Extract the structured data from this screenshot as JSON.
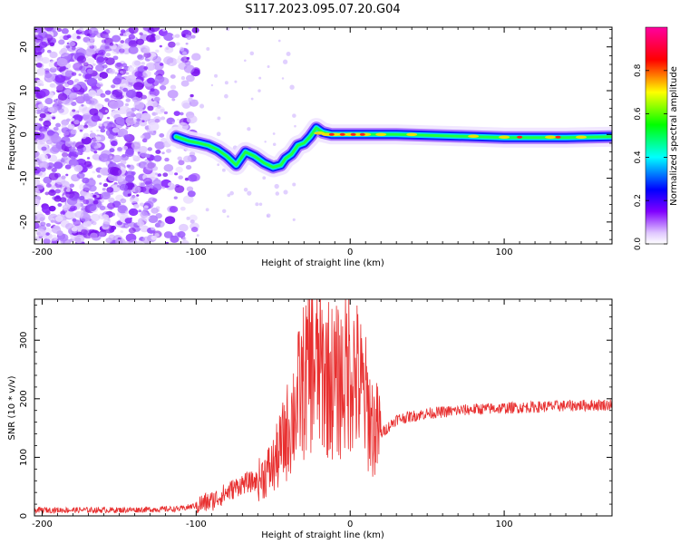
{
  "title": "S117.2023.095.07.20.G04",
  "chart_data": [
    {
      "type": "heatmap",
      "xlabel": "Height of straight line (km)",
      "ylabel": "Frequency (Hz)",
      "xlim": [
        -205,
        170
      ],
      "ylim": [
        -25,
        24.5
      ],
      "xticks": [
        -200,
        -100,
        0,
        100
      ],
      "yticks": [
        -20,
        -10,
        0,
        10,
        20
      ],
      "colorbar": {
        "label": "Normalized spectral amplitude",
        "range": [
          0,
          1
        ],
        "ticks": [
          0.0,
          0.2,
          0.4,
          0.6,
          0.8
        ],
        "colors": [
          "#ffffff",
          "#8000ff",
          "#0000ff",
          "#00ffff",
          "#00ff00",
          "#ffff00",
          "#ff0000",
          "#ff00a0"
        ]
      },
      "ridge": {
        "x": [
          -113,
          -105,
          -98,
          -92,
          -86,
          -80,
          -74,
          -68,
          -62,
          -56,
          -50,
          -45,
          -42,
          -38,
          -34,
          -30,
          -26,
          -22,
          -18,
          -12,
          -5,
          0,
          10,
          30,
          60,
          100,
          140,
          170
        ],
        "y": [
          -0.5,
          -1.5,
          -2,
          -2.5,
          -3.5,
          -5,
          -7,
          -4,
          -5,
          -6.5,
          -7.5,
          -7,
          -5.5,
          -4.5,
          -2.5,
          -2,
          -0.5,
          1.5,
          0.5,
          0,
          0,
          0,
          0,
          0,
          -0.3,
          -0.7,
          -0.7,
          -0.5
        ]
      },
      "noise_region_x": [
        -205,
        -110
      ]
    },
    {
      "type": "line",
      "xlabel": "Height of straight line (km)",
      "ylabel": "SNR (10 * v/v)",
      "xlim": [
        -205,
        170
      ],
      "ylim": [
        0,
        370
      ],
      "xticks": [
        -200,
        -100,
        0,
        100
      ],
      "yticks": [
        0,
        100,
        200,
        300
      ],
      "series": [
        {
          "color": "#e83030",
          "x": [
            -205,
            -150,
            -110,
            -100,
            -90,
            -80,
            -70,
            -60,
            -50,
            -45,
            -40,
            -35,
            -30,
            -25,
            -20,
            -15,
            -10,
            -5,
            0,
            5,
            10,
            15,
            20,
            30,
            50,
            80,
            110,
            140,
            170
          ],
          "values": [
            10,
            10,
            12,
            18,
            25,
            40,
            55,
            60,
            85,
            115,
            150,
            190,
            230,
            260,
            250,
            240,
            225,
            230,
            260,
            230,
            195,
            150,
            140,
            165,
            175,
            182,
            185,
            188,
            190
          ]
        }
      ]
    }
  ]
}
